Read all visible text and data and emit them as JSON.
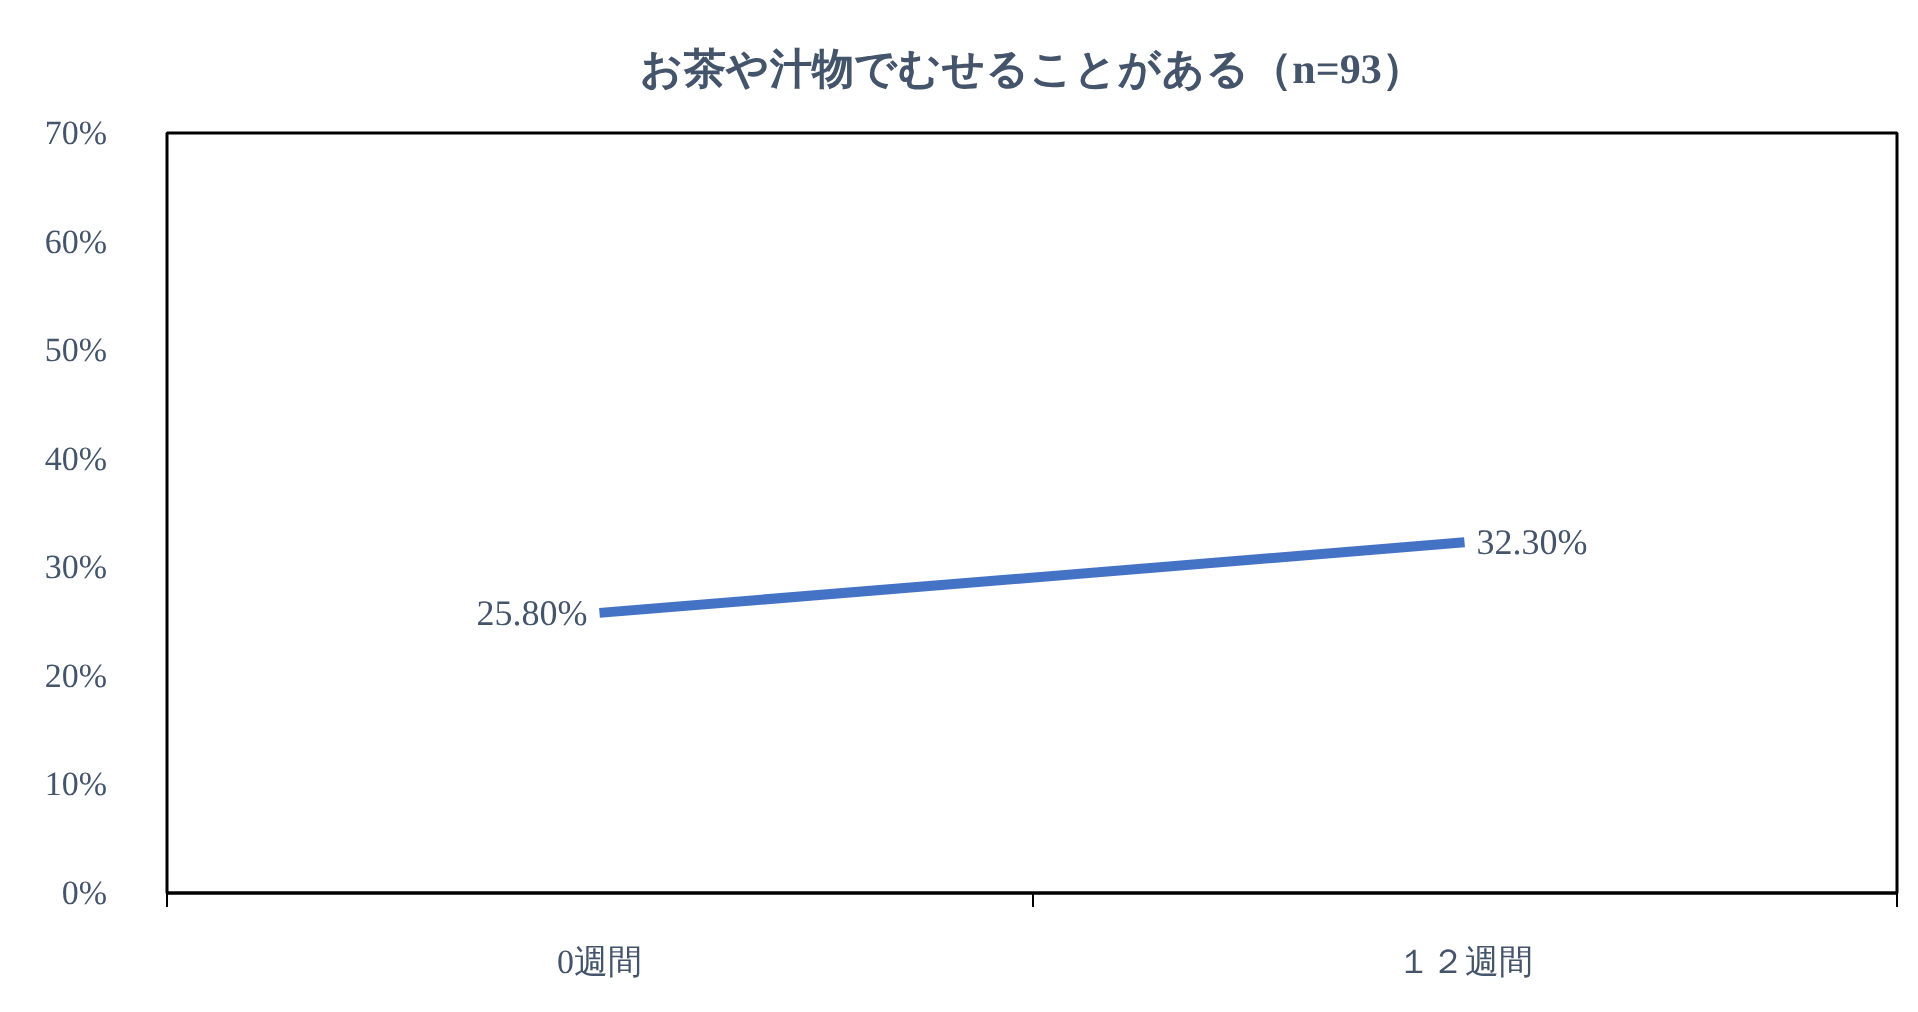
{
  "chart_data": {
    "type": "line",
    "title": "お茶や汁物でむせることがある（n=93）",
    "categories": [
      "0週間",
      "１２週間"
    ],
    "series": [
      {
        "color": "#4472c4",
        "values": [
          25.8,
          32.3
        ],
        "value_labels": [
          "25.80%",
          "32.30%"
        ]
      }
    ],
    "ylim": [
      0,
      70
    ],
    "yticks": [
      {
        "value": 0,
        "label": "0%"
      },
      {
        "value": 10,
        "label": "10%"
      },
      {
        "value": 20,
        "label": "20%"
      },
      {
        "value": 30,
        "label": "30%"
      },
      {
        "value": 40,
        "label": "40%"
      },
      {
        "value": 50,
        "label": "50%"
      },
      {
        "value": 60,
        "label": "60%"
      },
      {
        "value": 70,
        "label": "70%"
      }
    ],
    "grid": false,
    "marker": "none",
    "line_style": "solid"
  }
}
